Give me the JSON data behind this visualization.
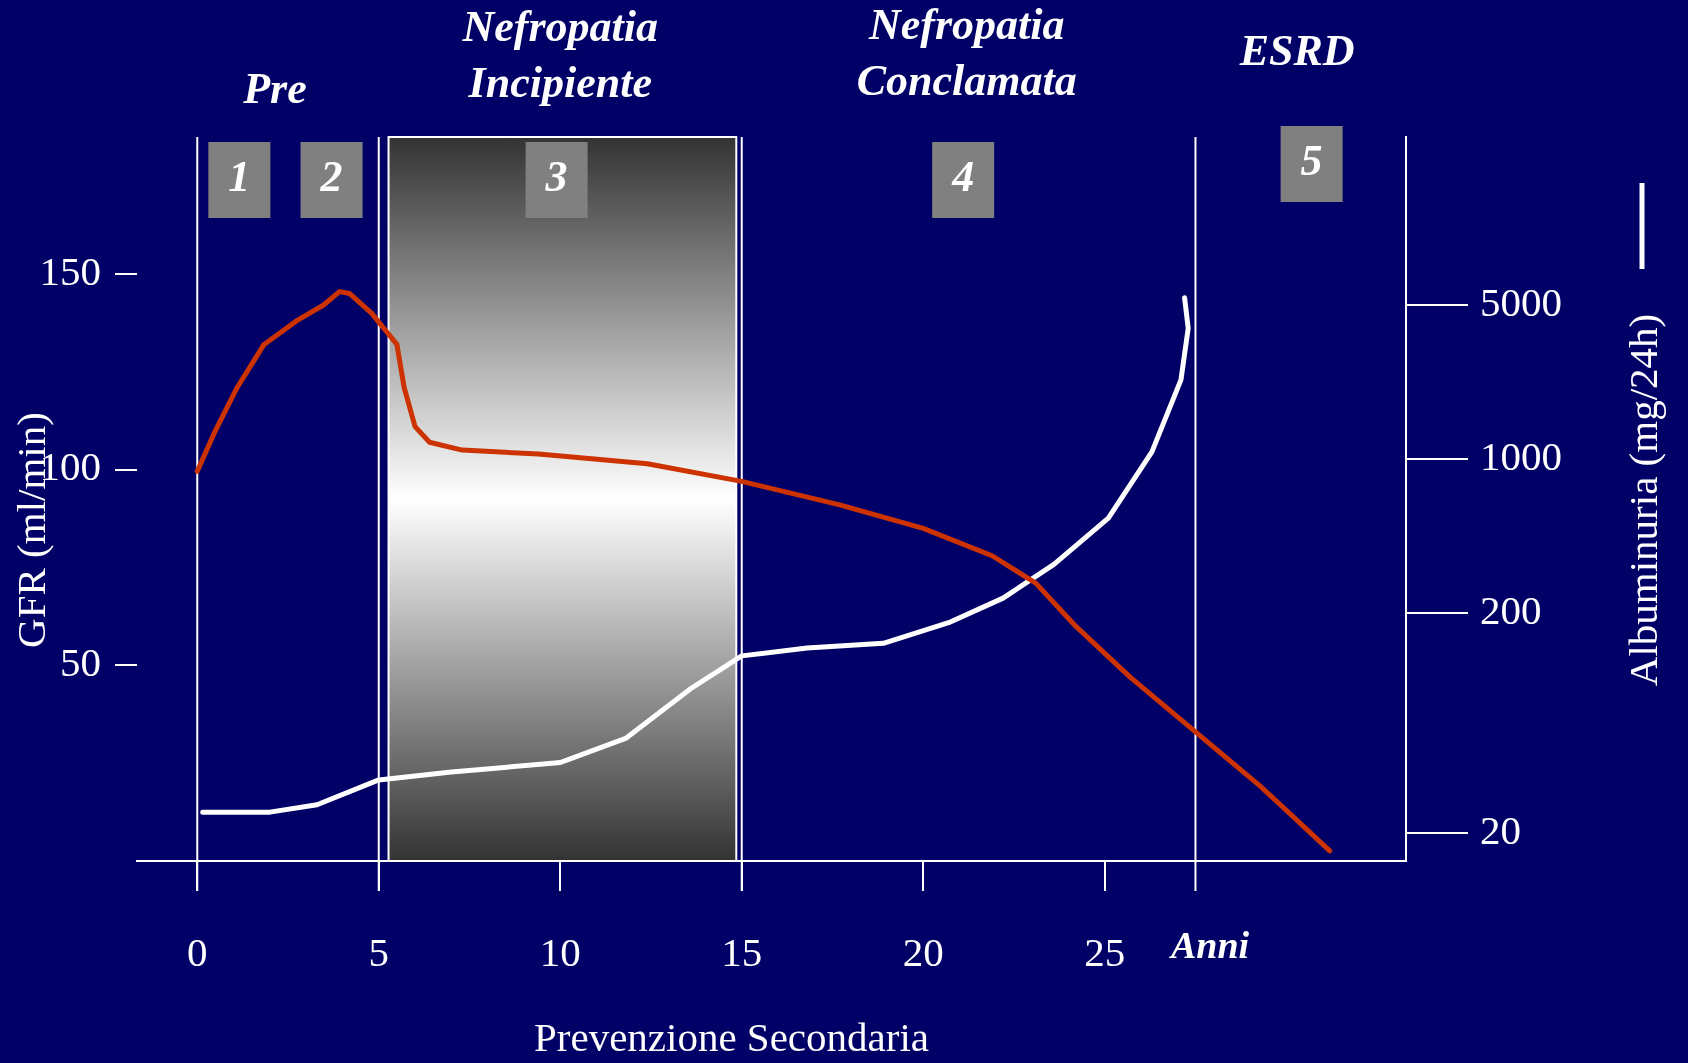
{
  "chart_data": {
    "type": "line",
    "xlabel": "Anni",
    "ylabel": "GFR (ml/min)",
    "y2label": "Albuminuria (mg/24h)",
    "xlim": [
      -1.66,
      33.3
    ],
    "xticks": [
      0,
      5,
      10,
      15,
      20,
      25
    ],
    "ylim": [
      0,
      185
    ],
    "yticks": [
      50,
      100,
      150
    ],
    "log": "y2",
    "y2lim": [
      15,
      29000
    ],
    "y2ticks": [
      20,
      200,
      1000,
      5000
    ],
    "series": [
      {
        "color": "#cc3300",
        "x": [
          0,
          0.5,
          1.1,
          1.84,
          2.73,
          3.47,
          3.92,
          4.2,
          4.8,
          5.5,
          5.7,
          6.0,
          6.4,
          7.3,
          9.4,
          12.4,
          15,
          17.7,
          20,
          21.9,
          23.1,
          24.2,
          25.7,
          27.5,
          29.3,
          31.2
        ],
        "values": [
          99.6,
          110,
          121,
          132,
          138,
          142,
          145.5,
          145,
          140,
          132,
          121,
          111,
          107,
          105,
          104,
          101.5,
          97,
          91,
          85,
          78,
          71,
          60,
          47,
          33,
          19,
          2.6
        ]
      },
      {
        "color": "#ffffff",
        "axis": "y2",
        "x": [
          0.15,
          2,
          3.3,
          5,
          7,
          10,
          11.8,
          13.6,
          15,
          16.8,
          18.9,
          20.7,
          22.2,
          23.6,
          25.1,
          26.3,
          27.1,
          27.3,
          27.2
        ],
        "values": [
          25,
          25,
          27,
          35,
          38,
          42,
          54,
          91,
          128,
          139,
          146,
          181,
          234,
          333,
          540,
          1080,
          2290,
          3930,
          5400
        ]
      }
    ],
    "ref_lines": [
      {
        "axis": "x",
        "value": 0,
        "color": "#ffffff"
      },
      {
        "axis": "x",
        "value": 5,
        "color": "#ffffff"
      },
      {
        "axis": "x",
        "value": 15,
        "color": "#ffffff"
      },
      {
        "axis": "x",
        "value": 27.5,
        "color": "#ffffff"
      }
    ],
    "bands": [
      {
        "axis": "x",
        "from": 5.27,
        "to": 14.85,
        "color": "#ffffff"
      }
    ],
    "annotations": [
      "Pre",
      "Nefropatia\nIncipiente",
      "Nefropatia\nConclamata",
      "ESRD",
      "1",
      "2",
      "3",
      "4",
      "5",
      "Prevenzione Secondaria"
    ],
    "grid": false,
    "legend": false,
    "marker": "none",
    "line_style": "solid"
  }
}
